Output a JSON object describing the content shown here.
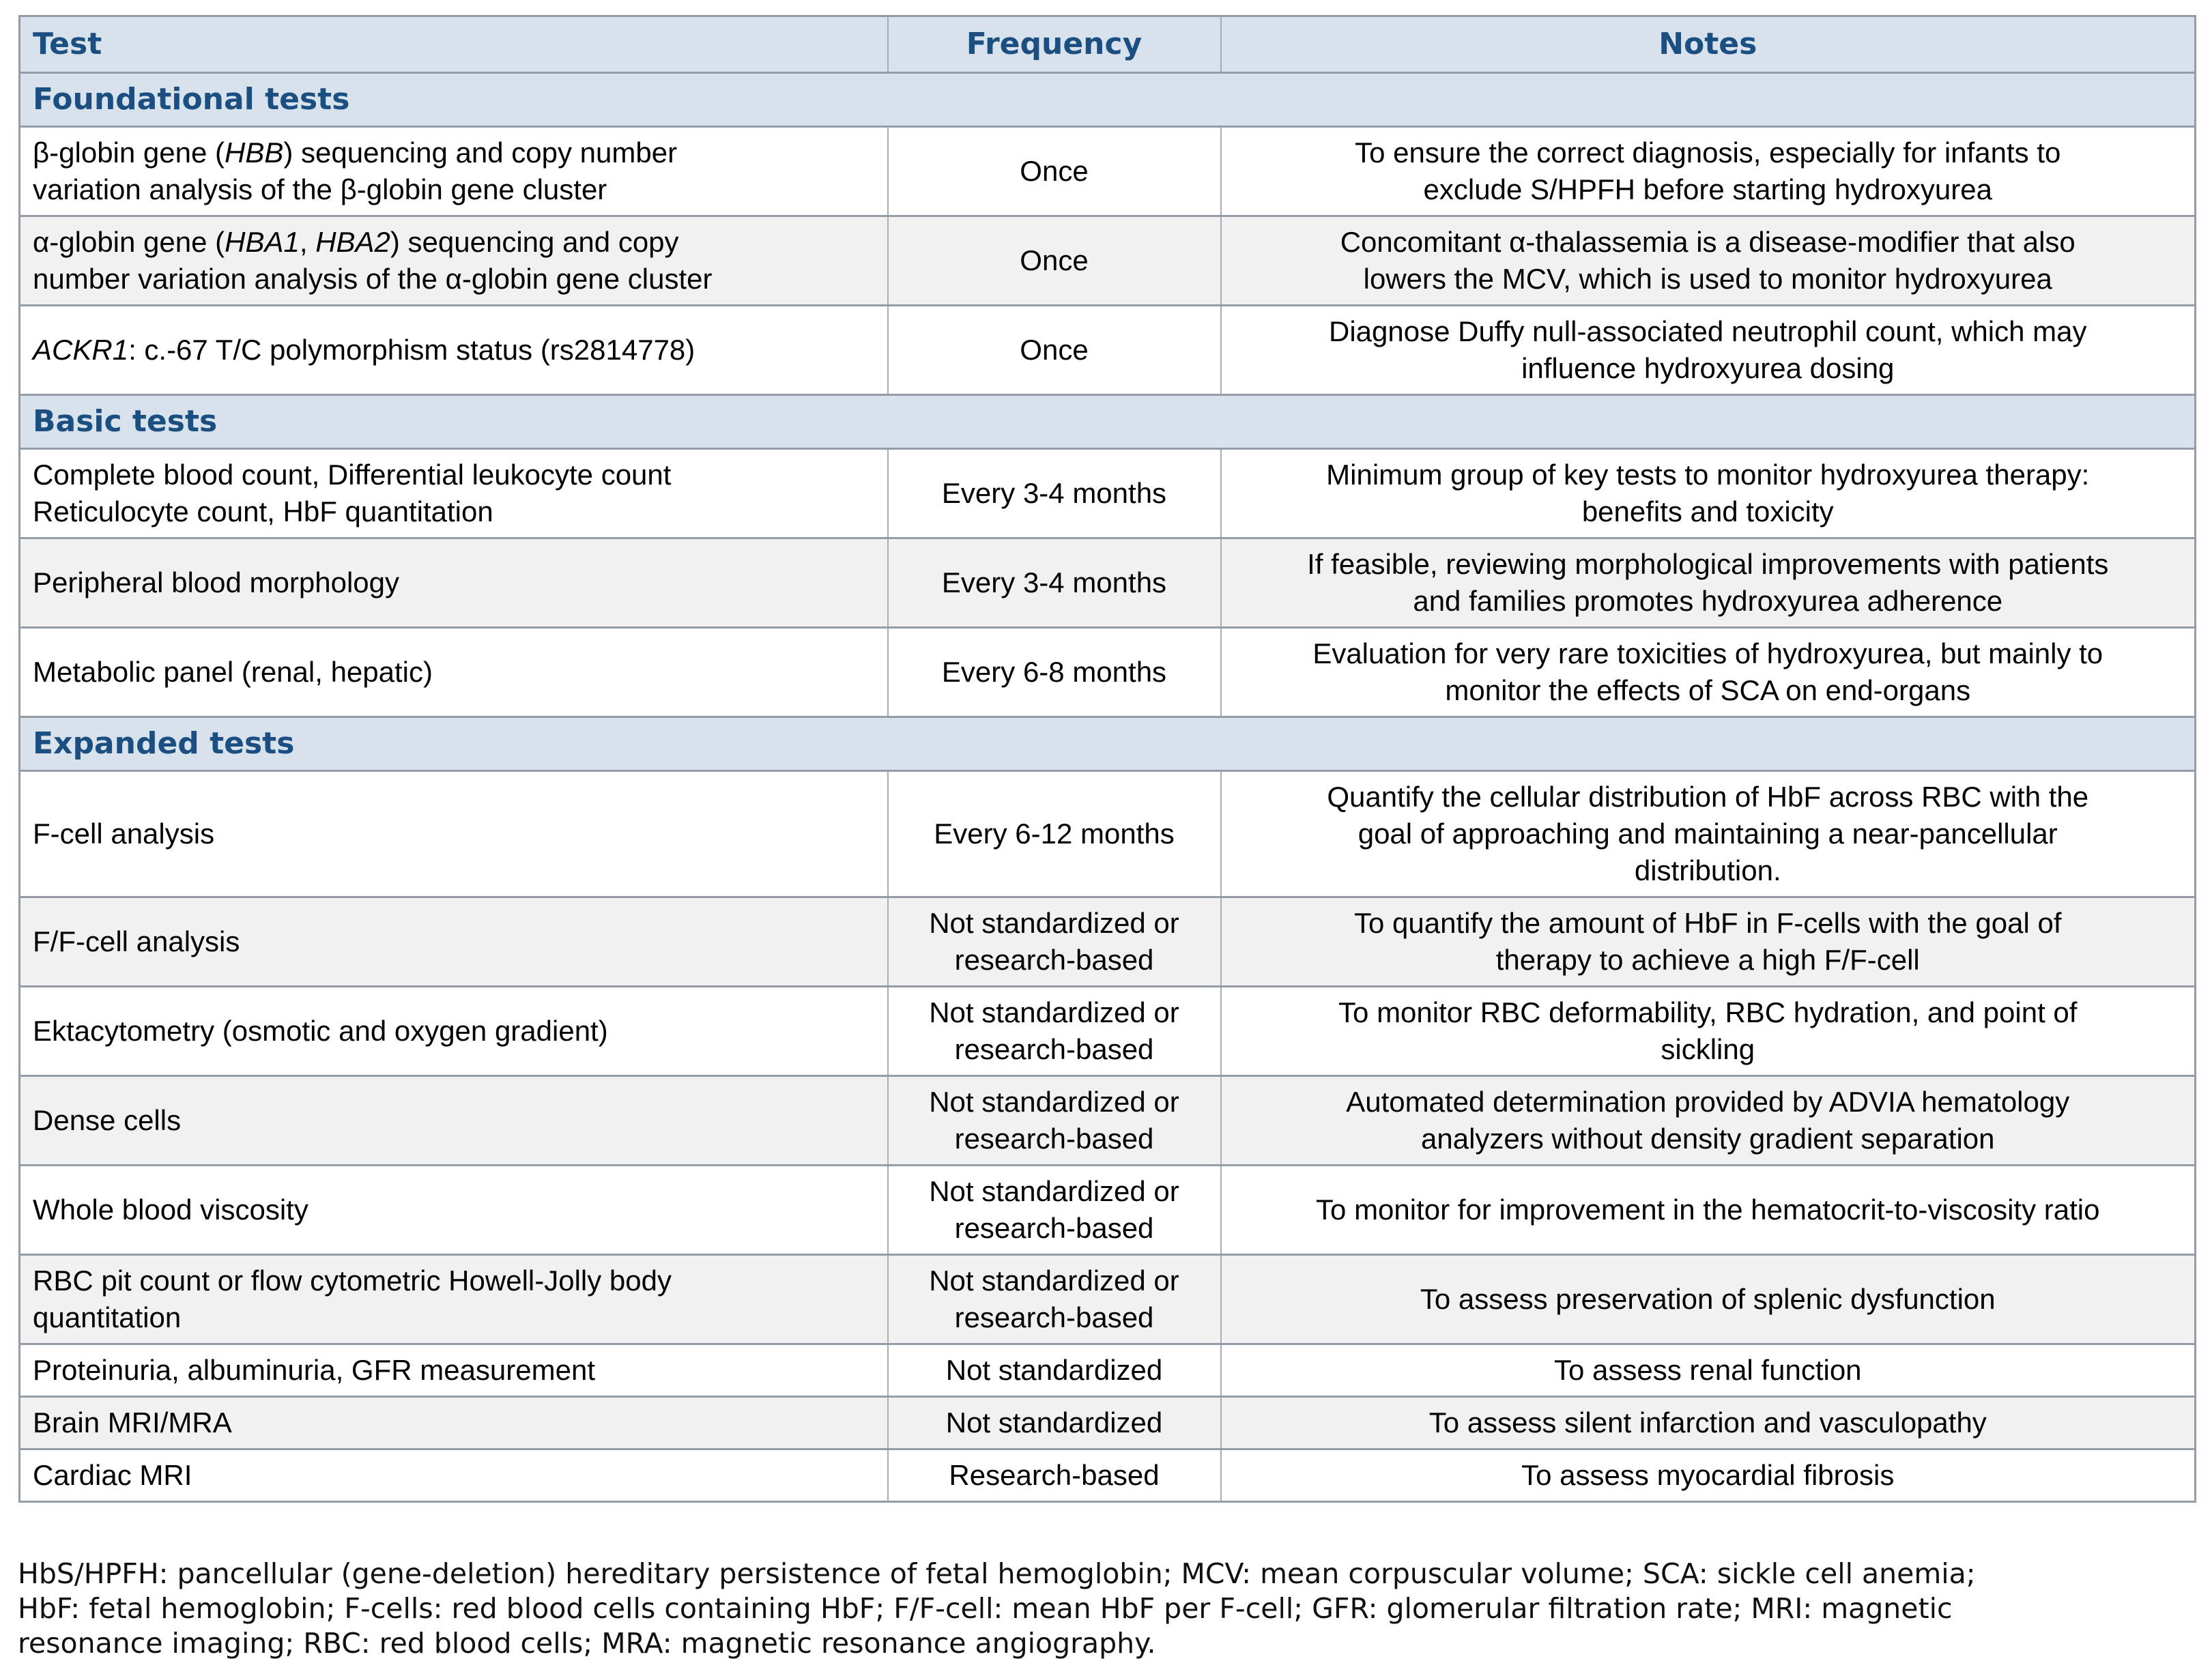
{
  "colors": {
    "header_bg": "#d8e2ec",
    "section_bg": "#d8e2ec",
    "header_text": "#1b4f82",
    "alt_row_bg": "#f1f1f1",
    "border": "#949da5"
  },
  "table": {
    "columns": [
      "Test",
      "Frequency",
      "Notes"
    ],
    "sections": [
      {
        "label": "Foundational tests",
        "rows": [
          {
            "test": [
              {
                "text": "β-globin gene ("
              },
              {
                "text": "HBB",
                "italic": true
              },
              {
                "text": ") sequencing and copy number"
              },
              {
                "br": true
              },
              {
                "text": "variation analysis of the β-globin gene cluster"
              }
            ],
            "frequency": "Once",
            "notes": "To ensure the correct diagnosis, especially for infants to\nexclude S/HPFH before starting hydroxyurea"
          },
          {
            "test": [
              {
                "text": "α-globin gene ("
              },
              {
                "text": "HBA1",
                "italic": true
              },
              {
                "text": ", "
              },
              {
                "text": "HBA2",
                "italic": true
              },
              {
                "text": ") sequencing and copy"
              },
              {
                "br": true
              },
              {
                "text": "number variation analysis of the α-globin gene cluster"
              }
            ],
            "frequency": "Once",
            "notes": "Concomitant α-thalassemia is a disease-modifier that also\nlowers the MCV, which is used to monitor hydroxyurea"
          },
          {
            "test": [
              {
                "text": "ACKR1",
                "italic": true
              },
              {
                "text": ": c.-67 T/C polymorphism status (rs2814778)"
              }
            ],
            "frequency": "Once",
            "notes": "Diagnose Duffy null-associated neutrophil count, which may\ninfluence hydroxyurea dosing"
          }
        ]
      },
      {
        "label": "Basic tests",
        "rows": [
          {
            "test": [
              {
                "text": "Complete blood count, Differential leukocyte count"
              },
              {
                "br": true
              },
              {
                "text": "Reticulocyte count, HbF quantitation"
              }
            ],
            "frequency": "Every 3-4 months",
            "notes": "Minimum group of key tests to monitor hydroxyurea therapy:\nbenefits and toxicity"
          },
          {
            "test": "Peripheral blood morphology",
            "frequency": "Every 3-4 months",
            "notes": "If feasible, reviewing morphological improvements with patients\nand families promotes hydroxyurea adherence"
          },
          {
            "test": "Metabolic panel (renal, hepatic)",
            "frequency": "Every 6-8 months",
            "notes": "Evaluation for very rare toxicities of hydroxyurea, but mainly to\nmonitor the effects of SCA on end-organs"
          }
        ]
      },
      {
        "label": "Expanded tests",
        "rows": [
          {
            "test": "F-cell analysis",
            "frequency": "Every 6-12 months",
            "notes": "Quantify the cellular distribution of HbF across RBC with the\ngoal of approaching and maintaining a near-pancellular\ndistribution."
          },
          {
            "test": "F/F-cell analysis",
            "frequency": "Not standardized or\nresearch-based",
            "notes": "To quantify the amount of HbF in F-cells with the goal of\ntherapy to achieve a high F/F-cell"
          },
          {
            "test": "Ektacytometry (osmotic and oxygen gradient)",
            "frequency": "Not standardized or\nresearch-based",
            "notes": "To monitor RBC deformability, RBC hydration, and point of\nsickling"
          },
          {
            "test": "Dense cells",
            "frequency": "Not standardized or\nresearch-based",
            "notes": "Automated determination provided by ADVIA hematology\nanalyzers without density gradient separation"
          },
          {
            "test": "Whole blood viscosity",
            "frequency": "Not standardized or\nresearch-based",
            "notes": "To monitor for improvement in the hematocrit-to-viscosity ratio"
          },
          {
            "test": [
              {
                "text": "RBC pit count or flow cytometric Howell-Jolly body"
              },
              {
                "br": true
              },
              {
                "text": "quantitation"
              }
            ],
            "frequency": "Not standardized or\nresearch-based",
            "notes": "To assess preservation of splenic dysfunction"
          },
          {
            "test": "Proteinuria, albuminuria, GFR measurement",
            "frequency": "Not standardized",
            "notes": "To assess renal function"
          },
          {
            "test": "Brain MRI/MRA",
            "frequency": "Not standardized",
            "notes": "To assess silent infarction and vasculopathy"
          },
          {
            "test": "Cardiac MRI",
            "frequency": "Research-based",
            "notes": "To assess myocardial fibrosis"
          }
        ]
      }
    ]
  },
  "footnote": {
    "text": "HbS/HPFH: pancellular (gene-deletion) hereditary persistence of fetal hemoglobin; MCV: mean corpuscular volume; SCA: sickle cell anemia;\nHbF: fetal hemoglobin; F-cells: red blood cells containing HbF; F/F-cell: mean HbF per F-cell; GFR: glomerular filtration rate; MRI: magnetic\nresonance imaging; RBC: red blood cells; MRA: magnetic resonance angiography."
  }
}
